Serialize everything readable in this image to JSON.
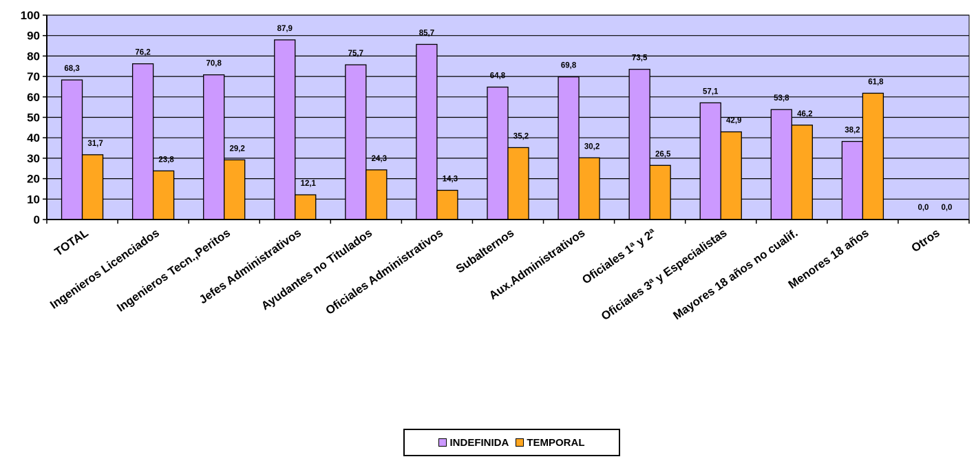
{
  "chart_data": {
    "type": "bar",
    "categories": [
      "TOTAL",
      "Ingenieros Licenciados",
      "Ingenieros Tecn.,Peritos",
      "Jefes Administrativos",
      "Ayudantes no Titulados",
      "Oficiales Administrativos",
      "Subalternos",
      "Aux.Administrativos",
      "Oficiales 1ª y 2ª",
      "Oficiales 3ª y Especialistas",
      "Mayores 18 años no cualif.",
      "Menores 18 años",
      "Otros"
    ],
    "series": [
      {
        "name": "INDEFINIDA",
        "color": "#cc99ff",
        "values": [
          68.3,
          76.2,
          70.8,
          87.9,
          75.7,
          85.7,
          64.8,
          69.8,
          73.5,
          57.1,
          53.8,
          38.2,
          0.0
        ],
        "labels": [
          "68,3",
          "76,2",
          "70,8",
          "87,9",
          "75,7",
          "85,7",
          "64,8",
          "69,8",
          "73,5",
          "57,1",
          "53,8",
          "38,2",
          "0,0"
        ]
      },
      {
        "name": "TEMPORAL",
        "color": "#ffa61f",
        "values": [
          31.7,
          23.8,
          29.2,
          12.1,
          24.3,
          14.3,
          35.2,
          30.2,
          26.5,
          42.9,
          46.2,
          61.8,
          0.0
        ],
        "labels": [
          "31,7",
          "23,8",
          "29,2",
          "12,1",
          "24,3",
          "14,3",
          "35,2",
          "30,2",
          "26,5",
          "42,9",
          "46,2",
          "61,8",
          "0,0"
        ]
      }
    ],
    "title": "",
    "xlabel": "",
    "ylabel": "",
    "ylim": [
      0,
      100
    ],
    "yticks": [
      "0",
      "10",
      "20",
      "30",
      "40",
      "50",
      "60",
      "70",
      "80",
      "90",
      "100"
    ],
    "grid": true,
    "plot_background": "#ccccff",
    "legend_position": "bottom"
  }
}
